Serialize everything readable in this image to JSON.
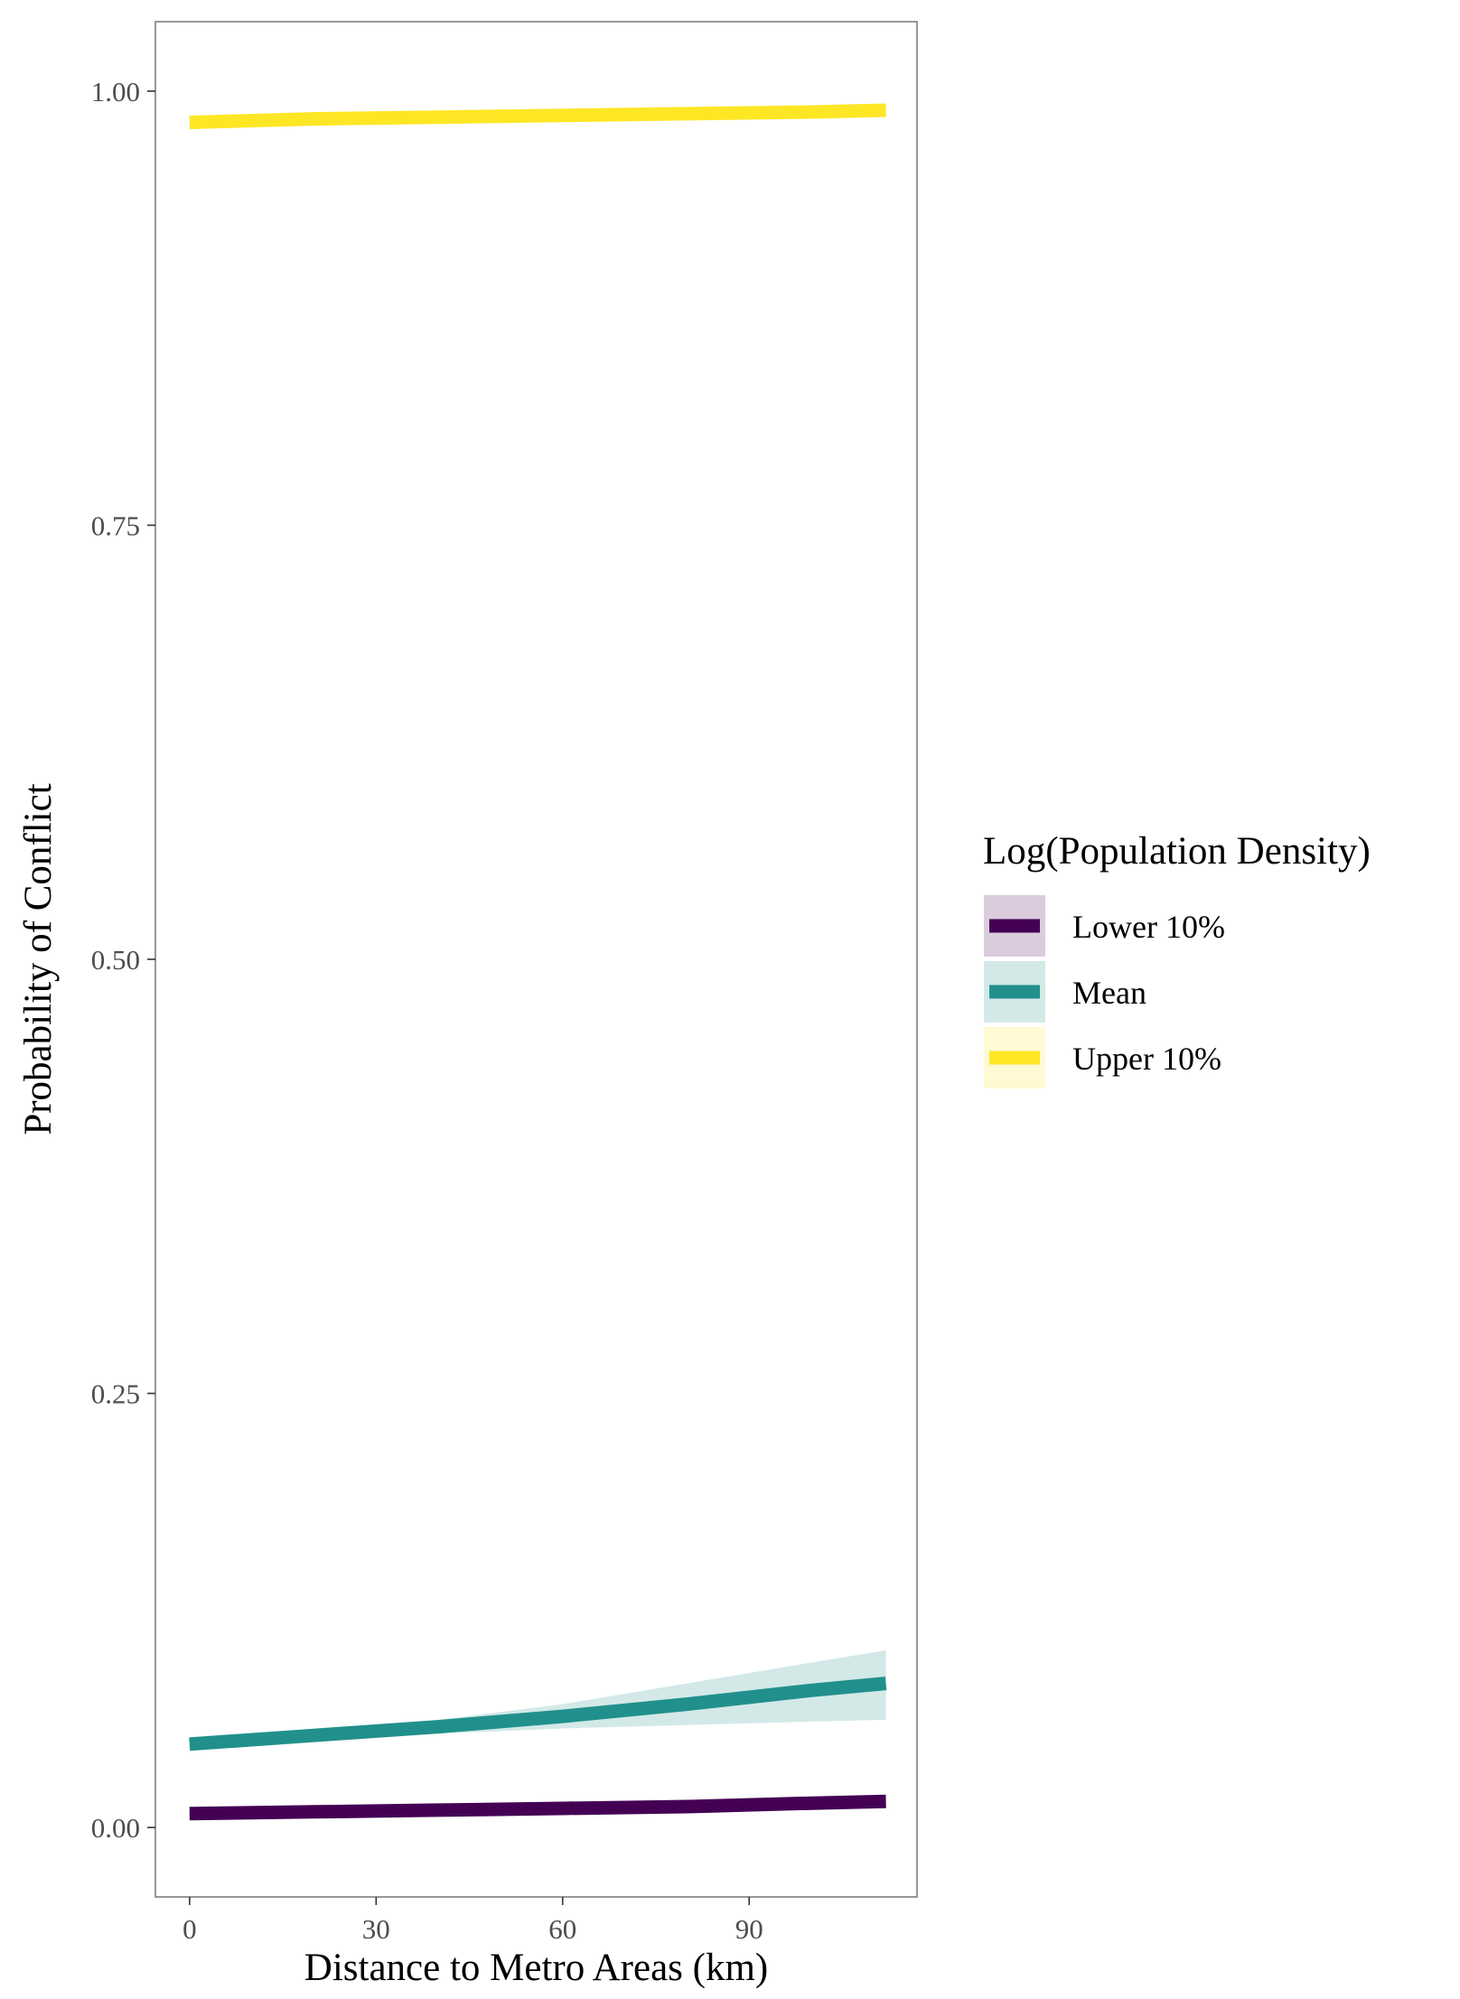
{
  "chart_data": {
    "type": "line",
    "title": "",
    "xlabel": "Distance to Metro Areas (km)",
    "ylabel": "Probability of Conflict",
    "xlim": [
      -5.5,
      117
    ],
    "ylim": [
      -0.04,
      1.04
    ],
    "x_ticks": [
      0,
      30,
      60,
      90
    ],
    "x_tick_labels": [
      "0",
      "30",
      "60",
      "90"
    ],
    "y_ticks": [
      0,
      0.25,
      0.5,
      0.75,
      1
    ],
    "y_tick_labels": [
      "0.00",
      "0.25",
      "0.50",
      "0.75",
      "1.00"
    ],
    "grid": false,
    "legend": {
      "title": "Log(Population Density)",
      "placement": "right"
    },
    "series": [
      {
        "name": "Lower 10%",
        "color": "#440154",
        "x": [
          0,
          20,
          40,
          60,
          80,
          100,
          112
        ],
        "y": [
          0.008,
          0.009,
          0.01,
          0.011,
          0.012,
          0.014,
          0.015
        ],
        "lower": [
          0.007,
          0.008,
          0.009,
          0.01,
          0.011,
          0.012,
          0.013
        ],
        "upper": [
          0.009,
          0.01,
          0.011,
          0.012,
          0.014,
          0.016,
          0.017
        ]
      },
      {
        "name": "Mean",
        "color": "#21908C",
        "x": [
          0,
          20,
          40,
          60,
          80,
          100,
          112
        ],
        "y": [
          0.048,
          0.053,
          0.058,
          0.064,
          0.071,
          0.079,
          0.083
        ],
        "lower": [
          0.045,
          0.05,
          0.054,
          0.057,
          0.059,
          0.061,
          0.062
        ],
        "upper": [
          0.052,
          0.056,
          0.062,
          0.071,
          0.083,
          0.095,
          0.102
        ]
      },
      {
        "name": "Upper 10%",
        "color": "#FDE725",
        "x": [
          0,
          20,
          40,
          60,
          80,
          100,
          112
        ],
        "y": [
          0.982,
          0.984,
          0.985,
          0.986,
          0.987,
          0.988,
          0.989
        ],
        "lower": [
          0.98,
          0.982,
          0.983,
          0.985,
          0.986,
          0.987,
          0.987
        ],
        "upper": [
          0.984,
          0.985,
          0.987,
          0.988,
          0.989,
          0.99,
          0.99
        ]
      }
    ]
  }
}
